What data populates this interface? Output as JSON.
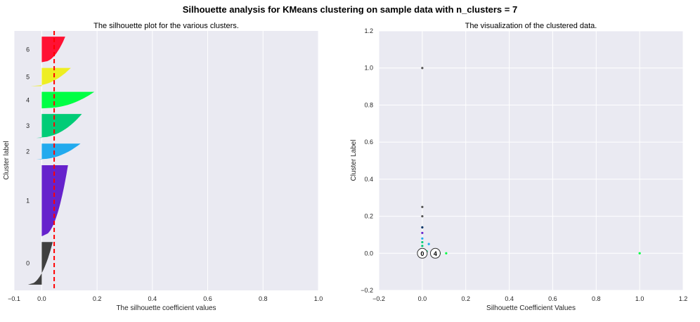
{
  "suptitle": "Silhouette analysis for KMeans clustering on sample data with n_clusters = 7",
  "chart_data": [
    {
      "type": "area",
      "title": "The silhouette plot for the various clusters.",
      "xlabel": "The silhouette coefficient values",
      "ylabel": "Cluster label",
      "xlim": [
        -0.1,
        1.0
      ],
      "xticks": [
        "−0.1",
        "0.0",
        "0.2",
        "0.4",
        "0.6",
        "0.8",
        "1.0"
      ],
      "average_silhouette_score": 0.045,
      "grid": true,
      "clusters": [
        {
          "label": "0",
          "color": "#404040",
          "size": 75,
          "max": 0.04,
          "min": -0.05
        },
        {
          "label": "1",
          "color": "#6622cc",
          "size": 125,
          "max": 0.095,
          "min": 0.0
        },
        {
          "label": "2",
          "color": "#22aaee",
          "size": 28,
          "max": 0.14,
          "min": -0.02
        },
        {
          "label": "3",
          "color": "#00cc77",
          "size": 42,
          "max": 0.145,
          "min": -0.02
        },
        {
          "label": "4",
          "color": "#00ff44",
          "size": 29,
          "max": 0.19,
          "min": 0.0
        },
        {
          "label": "5",
          "color": "#eeee22",
          "size": 32,
          "max": 0.105,
          "min": -0.04
        },
        {
          "label": "6",
          "color": "#ff1133",
          "size": 45,
          "max": 0.085,
          "min": 0.0
        }
      ]
    },
    {
      "type": "scatter",
      "title": "The visualization of the clustered data.",
      "xlabel": "Silhouette Coefficient Values",
      "ylabel": "Cluster Label",
      "xlim": [
        -0.2,
        1.2
      ],
      "ylim": [
        -0.2,
        1.2
      ],
      "xticks": [
        "−0.2",
        "0.0",
        "0.2",
        "0.4",
        "0.6",
        "0.8",
        "1.0",
        "1.2"
      ],
      "yticks": [
        "−0.2",
        "0.0",
        "0.2",
        "0.4",
        "0.6",
        "0.8",
        "1.0",
        "1.2"
      ],
      "grid": true,
      "points": [
        {
          "x": 0.0,
          "y": 1.0,
          "color": "#555555"
        },
        {
          "x": 0.0,
          "y": 0.25,
          "color": "#555555"
        },
        {
          "x": 0.0,
          "y": 0.2,
          "color": "#555555"
        },
        {
          "x": 0.0,
          "y": 0.14,
          "color": "#003366"
        },
        {
          "x": 0.0,
          "y": 0.11,
          "color": "#6622cc"
        },
        {
          "x": 0.0,
          "y": 0.08,
          "color": "#22aaee"
        },
        {
          "x": 0.0,
          "y": 0.06,
          "color": "#00cc77"
        },
        {
          "x": 0.0,
          "y": 0.04,
          "color": "#00cc77"
        },
        {
          "x": 0.0,
          "y": 0.02,
          "color": "#003366"
        },
        {
          "x": 0.03,
          "y": 0.05,
          "color": "#22aaee"
        },
        {
          "x": 0.02,
          "y": 0.01,
          "color": "#00cc77"
        },
        {
          "x": 0.08,
          "y": 0.0,
          "color": "#00ff44"
        },
        {
          "x": 0.11,
          "y": 0.0,
          "color": "#00ff44"
        },
        {
          "x": 1.0,
          "y": 0.0,
          "color": "#00ff44"
        }
      ],
      "centers": [
        {
          "label": "0",
          "x": 0.0,
          "y": 0.0
        },
        {
          "label": "4",
          "x": 0.06,
          "y": 0.0
        }
      ]
    }
  ]
}
